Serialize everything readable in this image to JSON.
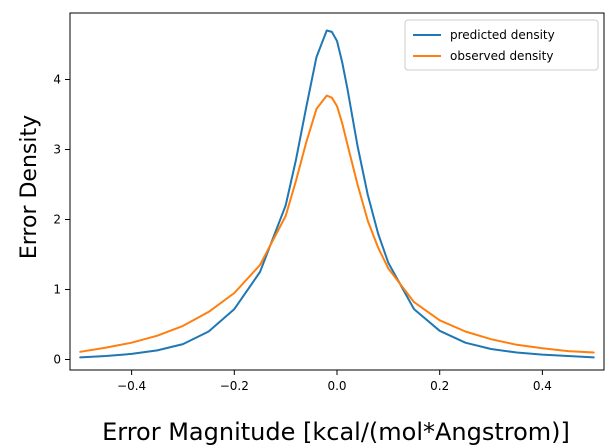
{
  "chart_data": {
    "type": "line",
    "title": "",
    "xlabel": "Error Magnitude [kcal/(mol*Angstrom)]",
    "ylabel": "Error Density",
    "xlim": [
      -0.52,
      0.52
    ],
    "ylim": [
      -0.15,
      4.95
    ],
    "grid": false,
    "legend_position": "top-right",
    "x_ticks": [
      -0.4,
      -0.2,
      0.0,
      0.2,
      0.4
    ],
    "x_tick_labels": [
      "−0.4",
      "−0.2",
      "0.0",
      "0.2",
      "0.4"
    ],
    "y_ticks": [
      0,
      1,
      2,
      3,
      4
    ],
    "y_tick_labels": [
      "0",
      "1",
      "2",
      "3",
      "4"
    ],
    "x": [
      -0.5,
      -0.45,
      -0.4,
      -0.35,
      -0.3,
      -0.25,
      -0.2,
      -0.15,
      -0.1,
      -0.08,
      -0.06,
      -0.04,
      -0.02,
      -0.01,
      0.0,
      0.01,
      0.02,
      0.04,
      0.06,
      0.08,
      0.1,
      0.15,
      0.2,
      0.25,
      0.3,
      0.35,
      0.4,
      0.45,
      0.5
    ],
    "series": [
      {
        "name": "predicted density",
        "color": "#1f77b4",
        "values": [
          0.03,
          0.05,
          0.08,
          0.13,
          0.22,
          0.4,
          0.72,
          1.25,
          2.2,
          2.85,
          3.6,
          4.32,
          4.7,
          4.68,
          4.55,
          4.25,
          3.88,
          3.05,
          2.35,
          1.8,
          1.38,
          0.72,
          0.41,
          0.24,
          0.15,
          0.1,
          0.07,
          0.05,
          0.03
        ]
      },
      {
        "name": "observed density",
        "color": "#ff7f0e",
        "values": [
          0.11,
          0.17,
          0.24,
          0.34,
          0.48,
          0.68,
          0.95,
          1.35,
          2.05,
          2.55,
          3.1,
          3.58,
          3.77,
          3.74,
          3.62,
          3.38,
          3.08,
          2.5,
          1.98,
          1.6,
          1.3,
          0.82,
          0.56,
          0.4,
          0.29,
          0.21,
          0.16,
          0.12,
          0.1
        ]
      }
    ]
  }
}
